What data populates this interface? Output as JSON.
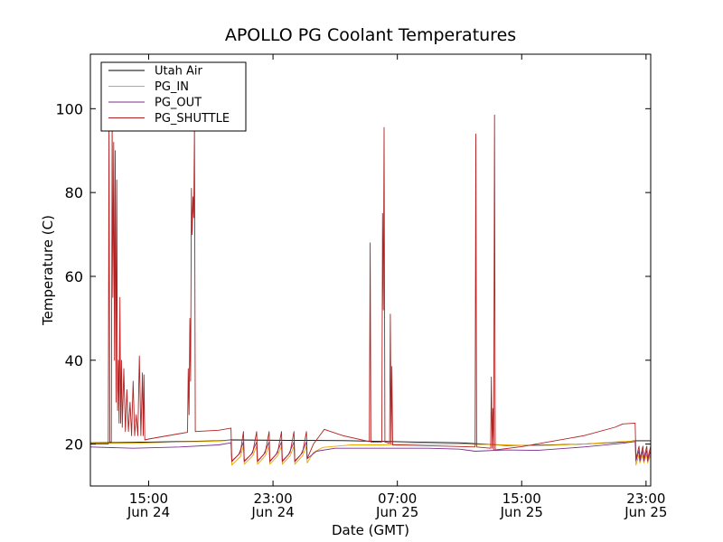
{
  "chart_data": {
    "type": "line",
    "title": "APOLLO PG Coolant Temperatures",
    "xlabel": "Date (GMT)",
    "ylabel": "Temperature (C)",
    "xlim": [
      11.25,
      47.3
    ],
    "ylim": [
      10,
      113
    ],
    "x_unit": "hours from 2024-06-24 00:00 GMT",
    "grid": false,
    "legend_position": "top-left",
    "y_ticks": [
      20,
      40,
      60,
      80,
      100
    ],
    "x_ticks": [
      {
        "x": 15,
        "time": "15:00",
        "date": "Jun 24"
      },
      {
        "x": 23,
        "time": "23:00",
        "date": "Jun 24"
      },
      {
        "x": 31,
        "time": "07:00",
        "date": "Jun 25"
      },
      {
        "x": 39,
        "time": "15:00",
        "date": "Jun 25"
      },
      {
        "x": 47,
        "time": "23:00",
        "date": "Jun 25"
      }
    ],
    "series": [
      {
        "name": "Utah Air",
        "color": "#000000",
        "points": [
          [
            11.25,
            20.3
          ],
          [
            14,
            20.4
          ],
          [
            17,
            20.6
          ],
          [
            19.5,
            20.8
          ],
          [
            20.3,
            21.0
          ],
          [
            24,
            20.9
          ],
          [
            28,
            20.8
          ],
          [
            32,
            20.5
          ],
          [
            35,
            20.3
          ],
          [
            38,
            19.7
          ],
          [
            40,
            19.7
          ],
          [
            43,
            20.0
          ],
          [
            45.5,
            20.5
          ],
          [
            46.3,
            20.8
          ],
          [
            47.3,
            20.8
          ]
        ]
      },
      {
        "name": "PG_IN",
        "color": "#e8a800",
        "points": [
          [
            11.25,
            20.2
          ],
          [
            14,
            20.2
          ],
          [
            17,
            20.5
          ],
          [
            19.5,
            20.7
          ],
          [
            20.3,
            20.9
          ],
          [
            20.35,
            15.0
          ],
          [
            20.9,
            17.0
          ],
          [
            21.1,
            19.5
          ],
          [
            21.15,
            15.2
          ],
          [
            21.7,
            17.2
          ],
          [
            21.95,
            19.5
          ],
          [
            22.0,
            15.2
          ],
          [
            22.5,
            17.2
          ],
          [
            22.75,
            19.5
          ],
          [
            22.8,
            15.2
          ],
          [
            23.3,
            17.2
          ],
          [
            23.55,
            19.5
          ],
          [
            23.6,
            15.2
          ],
          [
            24.1,
            17.2
          ],
          [
            24.35,
            19.5
          ],
          [
            24.4,
            15.2
          ],
          [
            24.9,
            17.2
          ],
          [
            25.15,
            19.5
          ],
          [
            25.2,
            15.5
          ],
          [
            25.6,
            18.0
          ],
          [
            26.2,
            19.2
          ],
          [
            28,
            19.8
          ],
          [
            30,
            19.8
          ],
          [
            32,
            20.0
          ],
          [
            35,
            20.0
          ],
          [
            38,
            19.8
          ],
          [
            40,
            19.6
          ],
          [
            43,
            20.0
          ],
          [
            45.5,
            20.6
          ],
          [
            46.3,
            20.7
          ],
          [
            46.35,
            15.0
          ],
          [
            46.55,
            17.5
          ],
          [
            46.6,
            15.5
          ],
          [
            46.8,
            17.5
          ],
          [
            46.85,
            15.5
          ],
          [
            47.05,
            17.5
          ],
          [
            47.1,
            15.5
          ],
          [
            47.3,
            17.5
          ]
        ]
      },
      {
        "name": "PG_OUT",
        "color": "#7b2d8e",
        "points": [
          [
            11.25,
            19.3
          ],
          [
            14,
            19.0
          ],
          [
            17,
            19.3
          ],
          [
            19.5,
            19.8
          ],
          [
            20.3,
            20.3
          ],
          [
            20.35,
            16.0
          ],
          [
            20.8,
            17.5
          ],
          [
            21.1,
            20.5
          ],
          [
            21.15,
            16.0
          ],
          [
            21.6,
            17.5
          ],
          [
            21.95,
            20.5
          ],
          [
            22.0,
            16.0
          ],
          [
            22.4,
            17.5
          ],
          [
            22.75,
            20.5
          ],
          [
            22.8,
            16.0
          ],
          [
            23.2,
            17.5
          ],
          [
            23.55,
            20.5
          ],
          [
            23.6,
            16.0
          ],
          [
            24.0,
            17.5
          ],
          [
            24.35,
            20.5
          ],
          [
            24.4,
            16.0
          ],
          [
            24.8,
            17.5
          ],
          [
            25.15,
            20.5
          ],
          [
            25.2,
            16.5
          ],
          [
            25.8,
            18.3
          ],
          [
            27,
            19.0
          ],
          [
            30,
            19.0
          ],
          [
            33,
            19.0
          ],
          [
            35,
            18.8
          ],
          [
            36,
            18.3
          ],
          [
            38,
            18.6
          ],
          [
            40,
            18.5
          ],
          [
            43,
            19.3
          ],
          [
            45.5,
            20.2
          ],
          [
            46.3,
            20.6
          ],
          [
            46.35,
            16.0
          ],
          [
            46.55,
            18.5
          ],
          [
            46.6,
            16.0
          ],
          [
            46.8,
            18.5
          ],
          [
            46.85,
            16.0
          ],
          [
            47.05,
            18.5
          ],
          [
            47.1,
            16.0
          ],
          [
            47.3,
            18.5
          ]
        ]
      },
      {
        "name": "PG_SHUTTLE",
        "color": "#b22222",
        "points": [
          [
            11.25,
            20.0
          ],
          [
            12.4,
            20.0
          ],
          [
            12.45,
            98
          ],
          [
            12.5,
            20.5
          ],
          [
            12.6,
            20.5
          ],
          [
            12.65,
            97
          ],
          [
            12.7,
            55
          ],
          [
            12.75,
            92
          ],
          [
            12.8,
            40
          ],
          [
            12.85,
            90
          ],
          [
            12.9,
            30
          ],
          [
            12.95,
            83
          ],
          [
            13.0,
            28
          ],
          [
            13.05,
            40
          ],
          [
            13.1,
            25
          ],
          [
            13.15,
            55
          ],
          [
            13.2,
            25
          ],
          [
            13.25,
            40
          ],
          [
            13.3,
            24
          ],
          [
            13.4,
            38
          ],
          [
            13.5,
            23
          ],
          [
            13.6,
            33
          ],
          [
            13.7,
            23
          ],
          [
            13.8,
            30
          ],
          [
            13.9,
            22
          ],
          [
            14.0,
            35
          ],
          [
            14.1,
            22
          ],
          [
            14.2,
            27
          ],
          [
            14.3,
            22
          ],
          [
            14.4,
            41
          ],
          [
            14.5,
            22
          ],
          [
            14.6,
            37
          ],
          [
            14.65,
            22
          ],
          [
            14.7,
            36.5
          ],
          [
            14.75,
            21
          ],
          [
            15,
            21.2
          ],
          [
            17,
            22.5
          ],
          [
            17.5,
            22.8
          ],
          [
            17.55,
            38
          ],
          [
            17.6,
            27
          ],
          [
            17.65,
            50
          ],
          [
            17.7,
            35
          ],
          [
            17.75,
            81
          ],
          [
            17.8,
            70
          ],
          [
            17.85,
            79
          ],
          [
            17.9,
            74
          ],
          [
            17.95,
            96
          ],
          [
            18.0,
            23
          ],
          [
            19.5,
            23.3
          ],
          [
            20.3,
            23.8
          ],
          [
            20.35,
            15.8
          ],
          [
            20.9,
            18.0
          ],
          [
            21.1,
            23.0
          ],
          [
            21.15,
            15.8
          ],
          [
            21.7,
            18.0
          ],
          [
            21.95,
            23.0
          ],
          [
            22.0,
            15.8
          ],
          [
            22.5,
            18.0
          ],
          [
            22.75,
            23.0
          ],
          [
            22.8,
            15.8
          ],
          [
            23.3,
            18.0
          ],
          [
            23.55,
            23.0
          ],
          [
            23.6,
            15.8
          ],
          [
            24.1,
            18.0
          ],
          [
            24.35,
            23.0
          ],
          [
            24.4,
            15.8
          ],
          [
            24.9,
            18.0
          ],
          [
            25.15,
            23.0
          ],
          [
            25.2,
            16.5
          ],
          [
            25.6,
            20.0
          ],
          [
            26.1,
            22.5
          ],
          [
            26.3,
            23.5
          ],
          [
            27.5,
            22.0
          ],
          [
            29.2,
            20.6
          ],
          [
            29.25,
            68
          ],
          [
            29.3,
            20.5
          ],
          [
            30.0,
            20.5
          ],
          [
            30.05,
            75
          ],
          [
            30.1,
            52
          ],
          [
            30.15,
            95.5
          ],
          [
            30.2,
            20.5
          ],
          [
            30.5,
            20.2
          ],
          [
            30.55,
            51
          ],
          [
            30.6,
            20
          ],
          [
            30.65,
            38.5
          ],
          [
            30.7,
            19.8
          ],
          [
            33,
            19.6
          ],
          [
            36.0,
            19.3
          ],
          [
            36.05,
            94
          ],
          [
            36.1,
            19.3
          ],
          [
            37.0,
            19.0
          ],
          [
            37.05,
            36
          ],
          [
            37.1,
            19.0
          ],
          [
            37.15,
            28.5
          ],
          [
            37.2,
            18.6
          ],
          [
            37.25,
            98.5
          ],
          [
            37.3,
            18.6
          ],
          [
            39,
            19.4
          ],
          [
            43,
            22.0
          ],
          [
            45,
            24.0
          ],
          [
            45.5,
            24.8
          ],
          [
            46.3,
            25.0
          ],
          [
            46.35,
            16.5
          ],
          [
            46.55,
            19.5
          ],
          [
            46.6,
            16.5
          ],
          [
            46.8,
            19.5
          ],
          [
            46.85,
            16.5
          ],
          [
            47.05,
            19.5
          ],
          [
            47.1,
            16.5
          ],
          [
            47.3,
            19.5
          ]
        ]
      }
    ]
  }
}
